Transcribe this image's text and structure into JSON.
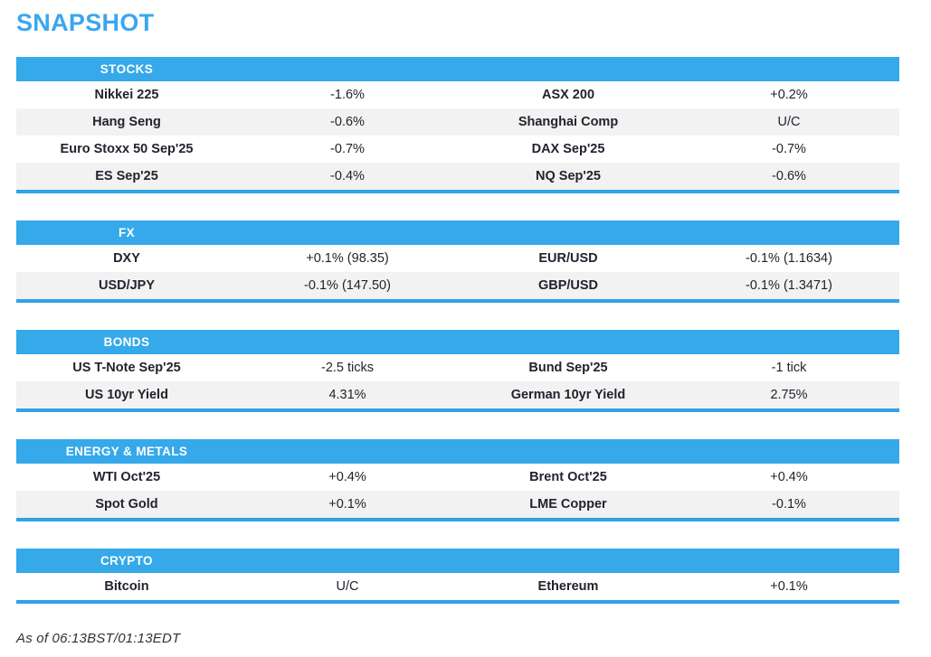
{
  "page": {
    "title": "SNAPSHOT",
    "footer": "As of 06:13BST/01:13EDT"
  },
  "colors": {
    "accent_blue": "#35A9EA",
    "border_blue": "#2FA3E4",
    "title_blue": "#3BA6F0",
    "row_stripe": "#F2F2F2",
    "text_dark": "#20242D"
  },
  "sections": [
    {
      "label": "STOCKS",
      "rows": [
        [
          "Nikkei 225",
          "-1.6%",
          "ASX 200",
          "+0.2%"
        ],
        [
          "Hang Seng",
          "-0.6%",
          "Shanghai Comp",
          "U/C"
        ],
        [
          "Euro Stoxx 50 Sep'25",
          "-0.7%",
          "DAX Sep'25",
          "-0.7%"
        ],
        [
          "ES Sep'25",
          "-0.4%",
          "NQ Sep'25",
          "-0.6%"
        ]
      ]
    },
    {
      "label": "FX",
      "rows": [
        [
          "DXY",
          "+0.1% (98.35)",
          "EUR/USD",
          "-0.1% (1.1634)"
        ],
        [
          "USD/JPY",
          "-0.1% (147.50)",
          "GBP/USD",
          "-0.1% (1.3471)"
        ]
      ]
    },
    {
      "label": "BONDS",
      "rows": [
        [
          "US T-Note Sep'25",
          "-2.5 ticks",
          "Bund Sep'25",
          "-1 tick"
        ],
        [
          "US 10yr Yield",
          "4.31%",
          "German 10yr Yield",
          "2.75%"
        ]
      ]
    },
    {
      "label": "ENERGY & METALS",
      "rows": [
        [
          "WTI Oct'25",
          "+0.4%",
          "Brent Oct'25",
          "+0.4%"
        ],
        [
          "Spot Gold",
          "+0.1%",
          "LME Copper",
          "-0.1%"
        ]
      ]
    },
    {
      "label": "CRYPTO",
      "rows": [
        [
          "Bitcoin",
          "U/C",
          "Ethereum",
          "+0.1%"
        ]
      ]
    }
  ]
}
